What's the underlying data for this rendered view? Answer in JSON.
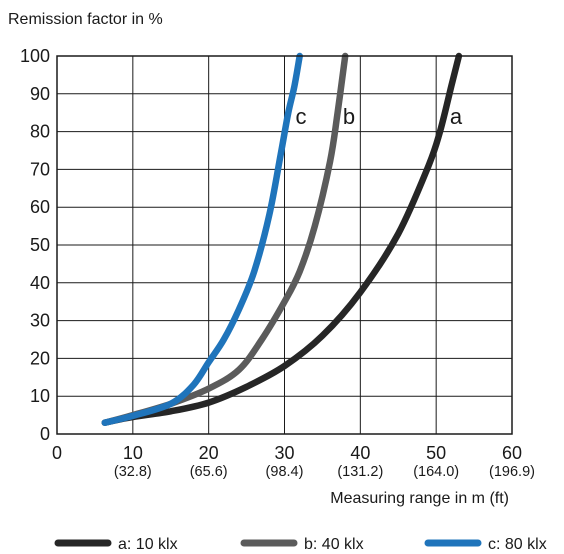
{
  "chart_data": {
    "type": "line",
    "title": "",
    "ylabel": "Remission factor in %",
    "xlabel": "Measuring range in m (ft)",
    "xlim": [
      0,
      60
    ],
    "ylim": [
      0,
      100
    ],
    "grid": true,
    "x_ticks": [
      {
        "value": 0,
        "label": "0",
        "sub": ""
      },
      {
        "value": 10,
        "label": "10",
        "sub": "(32.8)"
      },
      {
        "value": 20,
        "label": "20",
        "sub": "(65.6)"
      },
      {
        "value": 30,
        "label": "30",
        "sub": "(98.4)"
      },
      {
        "value": 40,
        "label": "40",
        "sub": "(131.2)"
      },
      {
        "value": 50,
        "label": "50",
        "sub": "(164.0)"
      },
      {
        "value": 60,
        "label": "60",
        "sub": "(196.9)"
      }
    ],
    "y_ticks": [
      0,
      10,
      20,
      30,
      40,
      50,
      60,
      70,
      80,
      90,
      100
    ],
    "legend_position": "bottom",
    "series": [
      {
        "id": "a",
        "name": "a: 10 klx",
        "tag": "a",
        "color": "#262626",
        "points": [
          [
            6.3,
            3
          ],
          [
            10,
            4.5
          ],
          [
            15,
            6
          ],
          [
            20,
            8.3
          ],
          [
            25,
            12.5
          ],
          [
            30,
            18
          ],
          [
            35,
            26
          ],
          [
            40,
            37.5
          ],
          [
            45,
            53
          ],
          [
            49,
            71
          ],
          [
            50.5,
            80
          ],
          [
            52,
            92
          ],
          [
            53,
            100
          ]
        ]
      },
      {
        "id": "b",
        "name": "b: 40 klx",
        "tag": "b",
        "color": "#5b5b5b",
        "points": [
          [
            6.3,
            3
          ],
          [
            10,
            5
          ],
          [
            15,
            8
          ],
          [
            20,
            12
          ],
          [
            24,
            17
          ],
          [
            27,
            25
          ],
          [
            30,
            35
          ],
          [
            32,
            43
          ],
          [
            34,
            55
          ],
          [
            36,
            72
          ],
          [
            37,
            85
          ],
          [
            38,
            100
          ]
        ]
      },
      {
        "id": "c",
        "name": "c: 80 klx",
        "tag": "c",
        "color": "#1f74bb",
        "points": [
          [
            6.3,
            3
          ],
          [
            10,
            4.8
          ],
          [
            15,
            8
          ],
          [
            18,
            13
          ],
          [
            20,
            19
          ],
          [
            22,
            25
          ],
          [
            24,
            33
          ],
          [
            26,
            43
          ],
          [
            28,
            58
          ],
          [
            29.5,
            74
          ],
          [
            30.5,
            85
          ],
          [
            31.3,
            92
          ],
          [
            32,
            100
          ]
        ]
      }
    ]
  }
}
